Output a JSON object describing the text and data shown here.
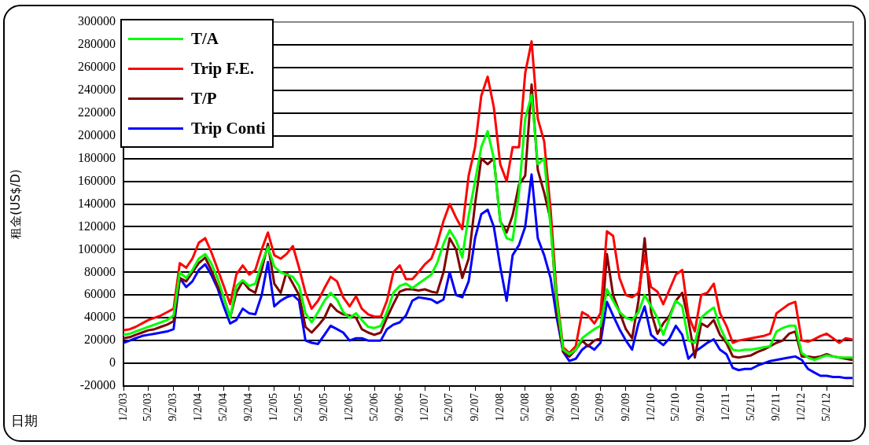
{
  "chart_data": {
    "type": "line",
    "ylabel": "租金(US$/D)",
    "xlabel": "日期",
    "x": [
      "2003-01-02",
      "2003-02-02",
      "2003-03-02",
      "2003-04-02",
      "2003-05-02",
      "2003-06-02",
      "2003-07-02",
      "2003-08-02",
      "2003-09-02",
      "2003-10-02",
      "2003-11-02",
      "2003-12-02",
      "2004-01-02",
      "2004-02-02",
      "2004-03-02",
      "2004-04-02",
      "2004-05-02",
      "2004-06-02",
      "2004-07-02",
      "2004-08-02",
      "2004-09-02",
      "2004-10-02",
      "2004-11-02",
      "2004-12-02",
      "2005-01-02",
      "2005-02-02",
      "2005-03-02",
      "2005-04-02",
      "2005-05-02",
      "2005-06-02",
      "2005-07-02",
      "2005-08-02",
      "2005-09-02",
      "2005-10-02",
      "2005-11-02",
      "2005-12-02",
      "2006-01-02",
      "2006-02-02",
      "2006-03-02",
      "2006-04-02",
      "2006-05-02",
      "2006-06-02",
      "2006-07-02",
      "2006-08-02",
      "2006-09-02",
      "2006-10-02",
      "2006-11-02",
      "2006-12-02",
      "2007-01-02",
      "2007-02-02",
      "2007-03-02",
      "2007-04-02",
      "2007-05-02",
      "2007-06-02",
      "2007-07-02",
      "2007-08-02",
      "2007-09-02",
      "2007-10-02",
      "2007-11-02",
      "2007-12-02",
      "2008-01-02",
      "2008-02-02",
      "2008-03-02",
      "2008-04-02",
      "2008-05-02",
      "2008-06-02",
      "2008-07-02",
      "2008-08-02",
      "2008-09-02",
      "2008-10-02",
      "2008-11-02",
      "2008-12-02",
      "2009-01-02",
      "2009-02-02",
      "2009-03-02",
      "2009-04-02",
      "2009-05-02",
      "2009-06-02",
      "2009-07-02",
      "2009-08-02",
      "2009-09-02",
      "2009-10-02",
      "2009-11-02",
      "2009-12-02",
      "2010-01-02",
      "2010-02-02",
      "2010-03-02",
      "2010-04-02",
      "2010-05-02",
      "2010-06-02",
      "2010-07-02",
      "2010-08-02",
      "2010-09-02",
      "2010-10-02",
      "2010-11-02",
      "2010-12-02",
      "2011-01-02",
      "2011-02-02",
      "2011-03-02",
      "2011-04-02",
      "2011-05-02",
      "2011-06-02",
      "2011-07-02",
      "2011-08-02",
      "2011-09-02",
      "2011-10-02",
      "2011-11-02",
      "2011-12-02",
      "2012-01-02",
      "2012-02-02",
      "2012-03-02",
      "2012-04-02",
      "2012-05-02",
      "2012-06-02",
      "2012-07-02",
      "2012-08-02",
      "2012-09-02"
    ],
    "series": [
      {
        "name": "T/A",
        "color": "#00ff00",
        "values": [
          25000,
          26000,
          28000,
          30000,
          32000,
          34000,
          36000,
          38000,
          42000,
          80000,
          75000,
          82000,
          92000,
          96000,
          88000,
          75000,
          58000,
          40000,
          68000,
          73000,
          68000,
          70000,
          88000,
          102000,
          85000,
          80000,
          78000,
          76000,
          68000,
          44000,
          36000,
          45000,
          55000,
          62000,
          56000,
          45000,
          40000,
          44000,
          38000,
          32000,
          31000,
          33000,
          45000,
          62000,
          68000,
          70000,
          66000,
          70000,
          74000,
          78000,
          88000,
          105000,
          117000,
          108000,
          93000,
          130000,
          160000,
          190000,
          204000,
          180000,
          125000,
          110000,
          108000,
          150000,
          215000,
          236000,
          175000,
          180000,
          120000,
          55000,
          12000,
          8000,
          12000,
          22000,
          26000,
          30000,
          33000,
          65000,
          55000,
          45000,
          40000,
          38000,
          45000,
          60000,
          50000,
          40000,
          25000,
          40000,
          55000,
          50000,
          20000,
          18000,
          40000,
          45000,
          49000,
          32000,
          20000,
          12000,
          11000,
          12000,
          12000,
          13000,
          14000,
          15000,
          28000,
          31000,
          33000,
          33000,
          9000,
          5000,
          3000,
          5000,
          7000,
          6000,
          5000,
          5000,
          5000
        ]
      },
      {
        "name": "Trip F.E.",
        "color": "#ff0000",
        "values": [
          29000,
          30000,
          32000,
          35000,
          38000,
          40000,
          42000,
          45000,
          48000,
          88000,
          84000,
          92000,
          106000,
          110000,
          98000,
          83000,
          68000,
          52000,
          78000,
          86000,
          78000,
          82000,
          100000,
          115000,
          95000,
          92000,
          96000,
          103000,
          84000,
          62000,
          48000,
          55000,
          66000,
          76000,
          72000,
          58000,
          50000,
          59000,
          48000,
          43000,
          41000,
          41000,
          55000,
          80000,
          86000,
          74000,
          74000,
          80000,
          87000,
          92000,
          105000,
          125000,
          140000,
          128000,
          118000,
          165000,
          190000,
          235000,
          252000,
          225000,
          175000,
          160000,
          190000,
          190000,
          255000,
          283000,
          215000,
          195000,
          135000,
          60000,
          14000,
          9000,
          15000,
          45000,
          42000,
          35000,
          44000,
          116000,
          112000,
          75000,
          60000,
          58000,
          62000,
          95000,
          67000,
          63000,
          52000,
          65000,
          78000,
          82000,
          42000,
          28000,
          60000,
          62000,
          70000,
          44000,
          33000,
          18000,
          20000,
          21000,
          22000,
          23000,
          24000,
          26000,
          44000,
          48000,
          52000,
          54000,
          20000,
          19000,
          21000,
          24000,
          26000,
          22000,
          18000,
          22000,
          21000
        ]
      },
      {
        "name": "T/P",
        "color": "#800000",
        "values": [
          22000,
          23000,
          25000,
          27000,
          29000,
          30000,
          32000,
          34000,
          37000,
          75000,
          72000,
          80000,
          88000,
          93000,
          82000,
          68000,
          58000,
          40000,
          62000,
          72000,
          65000,
          62000,
          82000,
          105000,
          70000,
          62000,
          80000,
          70000,
          60000,
          32000,
          27000,
          33000,
          40000,
          52000,
          46000,
          43000,
          42000,
          40000,
          30000,
          27000,
          25000,
          27000,
          40000,
          52000,
          63000,
          65000,
          65000,
          64000,
          65000,
          63000,
          62000,
          80000,
          110000,
          100000,
          75000,
          92000,
          140000,
          180000,
          175000,
          180000,
          125000,
          115000,
          130000,
          157000,
          165000,
          245000,
          170000,
          150000,
          126000,
          46000,
          10000,
          6000,
          12000,
          20000,
          15000,
          20000,
          22000,
          96000,
          60000,
          45000,
          30000,
          22000,
          55000,
          110000,
          45000,
          26000,
          35000,
          42000,
          55000,
          62000,
          38000,
          5000,
          35000,
          32000,
          38000,
          25000,
          18000,
          6000,
          5000,
          6000,
          7000,
          10000,
          12000,
          15000,
          18000,
          20000,
          26000,
          28000,
          6000,
          6000,
          5000,
          6000,
          8000,
          6000,
          5000,
          4000,
          3000
        ]
      },
      {
        "name": "Trip Conti",
        "color": "#0000ff",
        "values": [
          18000,
          20000,
          22000,
          24000,
          25000,
          26000,
          27000,
          28000,
          30000,
          75000,
          67000,
          72000,
          82000,
          87000,
          78000,
          66000,
          50000,
          35000,
          38000,
          48000,
          44000,
          43000,
          60000,
          89000,
          50000,
          55000,
          58000,
          60000,
          55000,
          20000,
          18000,
          17000,
          25000,
          33000,
          30000,
          27000,
          20000,
          22000,
          22000,
          20000,
          20000,
          20000,
          30000,
          34000,
          36000,
          42000,
          55000,
          58000,
          57000,
          56000,
          53000,
          56000,
          80000,
          60000,
          58000,
          72000,
          110000,
          131000,
          135000,
          120000,
          85000,
          55000,
          95000,
          104000,
          120000,
          166000,
          110000,
          95000,
          75000,
          40000,
          10000,
          2000,
          4000,
          12000,
          16000,
          12000,
          18000,
          54000,
          42000,
          30000,
          20000,
          12000,
          35000,
          50000,
          25000,
          20000,
          16000,
          22000,
          33000,
          25000,
          4000,
          10000,
          14000,
          18000,
          21000,
          12000,
          8000,
          -4000,
          -6000,
          -5000,
          -5000,
          -2000,
          0,
          2000,
          3000,
          4000,
          5000,
          6000,
          3000,
          -5000,
          -8000,
          -11000,
          -11000,
          -12000,
          -12000,
          -13000,
          -13000
        ]
      }
    ],
    "xlim": [
      "2003-01-02",
      "2012-09-08"
    ],
    "xticks": [
      {
        "value": "2003-01-02",
        "label": "1/2/03"
      },
      {
        "value": "2003-05-02",
        "label": "5/2/03"
      },
      {
        "value": "2003-09-02",
        "label": "9/2/03"
      },
      {
        "value": "2004-01-02",
        "label": "1/2/04"
      },
      {
        "value": "2004-05-02",
        "label": "5/2/04"
      },
      {
        "value": "2004-09-02",
        "label": "9/2/04"
      },
      {
        "value": "2005-01-02",
        "label": "1/2/05"
      },
      {
        "value": "2005-05-02",
        "label": "5/2/05"
      },
      {
        "value": "2005-09-02",
        "label": "9/2/05"
      },
      {
        "value": "2006-01-02",
        "label": "1/2/06"
      },
      {
        "value": "2006-05-02",
        "label": "5/2/06"
      },
      {
        "value": "2006-09-02",
        "label": "9/2/06"
      },
      {
        "value": "2007-01-02",
        "label": "1/2/07"
      },
      {
        "value": "2007-05-02",
        "label": "5/2/07"
      },
      {
        "value": "2007-09-02",
        "label": "9/2/07"
      },
      {
        "value": "2008-01-02",
        "label": "1/2/08"
      },
      {
        "value": "2008-05-02",
        "label": "5/2/08"
      },
      {
        "value": "2008-09-02",
        "label": "9/2/08"
      },
      {
        "value": "2009-01-02",
        "label": "1/2/09"
      },
      {
        "value": "2009-05-02",
        "label": "5/2/09"
      },
      {
        "value": "2009-09-02",
        "label": "9/2/09"
      },
      {
        "value": "2010-01-02",
        "label": "1/2/10"
      },
      {
        "value": "2010-05-02",
        "label": "5/2/10"
      },
      {
        "value": "2010-09-02",
        "label": "9/2/10"
      },
      {
        "value": "2011-01-02",
        "label": "1/2/11"
      },
      {
        "value": "2011-05-02",
        "label": "5/2/11"
      },
      {
        "value": "2011-09-02",
        "label": "9/2/11"
      },
      {
        "value": "2012-01-02",
        "label": "1/2/12"
      },
      {
        "value": "2012-05-02",
        "label": "5/2/12"
      }
    ],
    "ylim": [
      -20000,
      300000
    ],
    "yticks": [
      -20000,
      0,
      20000,
      40000,
      60000,
      80000,
      100000,
      120000,
      140000,
      160000,
      180000,
      200000,
      220000,
      240000,
      260000,
      280000,
      300000
    ],
    "grid": "y",
    "legend": "top left",
    "marker": "none",
    "line_style": "solid"
  }
}
